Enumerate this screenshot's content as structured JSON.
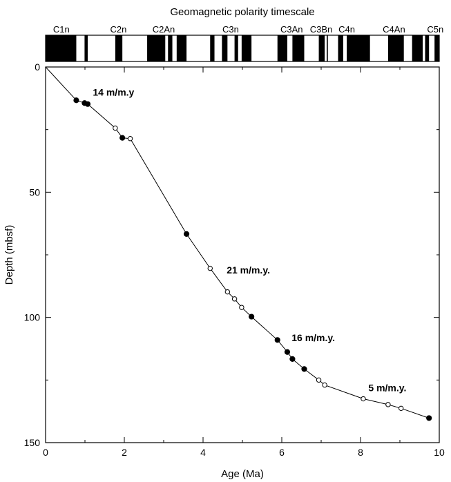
{
  "chart_data": {
    "type": "scatter",
    "title": "Geomagnetic polarity timescale",
    "xlabel": "Age (Ma)",
    "ylabel": "Depth (mbsf)",
    "xlim": [
      0,
      10
    ],
    "ylim": [
      0,
      150
    ],
    "y_inverted": true,
    "xticks": [
      "0",
      "2",
      "4",
      "6",
      "8",
      "10"
    ],
    "yticks": [
      "0",
      "50",
      "100",
      "150"
    ],
    "chrons": [
      {
        "label": "C1n",
        "age": 0.4
      },
      {
        "label": "C2n",
        "age": 1.85
      },
      {
        "label": "C2An",
        "age": 3.0
      },
      {
        "label": "C3n",
        "age": 4.7
      },
      {
        "label": "C3An",
        "age": 6.25
      },
      {
        "label": "C3Bn",
        "age": 7.0
      },
      {
        "label": "C4n",
        "age": 7.65
      },
      {
        "label": "C4An",
        "age": 8.85
      },
      {
        "label": "C5n",
        "age": 9.9
      }
    ],
    "normal_polarity_intervals": [
      [
        0.0,
        0.78
      ],
      [
        0.99,
        1.07
      ],
      [
        1.77,
        1.95
      ],
      [
        2.58,
        3.04
      ],
      [
        3.11,
        3.22
      ],
      [
        3.33,
        3.58
      ],
      [
        4.18,
        4.29
      ],
      [
        4.48,
        4.62
      ],
      [
        4.8,
        4.89
      ],
      [
        4.98,
        5.23
      ],
      [
        5.89,
        6.14
      ],
      [
        6.27,
        6.57
      ],
      [
        6.94,
        7.09
      ],
      [
        7.14,
        7.17
      ],
      [
        7.43,
        7.56
      ],
      [
        7.65,
        8.24
      ],
      [
        8.7,
        9.1
      ],
      [
        9.31,
        9.58
      ],
      [
        9.64,
        9.74
      ],
      [
        9.88,
        10.0
      ]
    ],
    "series": [
      {
        "marker": "filled",
        "points": [
          [
            0.78,
            13.3
          ],
          [
            0.99,
            14.4
          ],
          [
            1.07,
            14.8
          ],
          [
            1.95,
            28.3
          ],
          [
            3.58,
            66.7
          ],
          [
            5.23,
            99.7
          ],
          [
            5.89,
            109.0
          ],
          [
            6.14,
            113.8
          ],
          [
            6.27,
            116.6
          ],
          [
            6.57,
            120.6
          ],
          [
            9.74,
            140.2
          ]
        ]
      },
      {
        "marker": "open",
        "points": [
          [
            1.77,
            24.4
          ],
          [
            2.15,
            28.6
          ],
          [
            4.18,
            80.4
          ],
          [
            4.62,
            89.8
          ],
          [
            4.8,
            92.6
          ],
          [
            4.98,
            96.0
          ],
          [
            6.94,
            125.0
          ],
          [
            7.09,
            127.0
          ],
          [
            8.07,
            132.5
          ],
          [
            8.7,
            134.8
          ],
          [
            9.03,
            136.3
          ]
        ]
      }
    ],
    "line": [
      [
        0,
        0
      ],
      [
        0.78,
        13.3
      ],
      [
        0.99,
        14.4
      ],
      [
        1.07,
        14.8
      ],
      [
        1.77,
        24.4
      ],
      [
        1.95,
        28.3
      ],
      [
        2.15,
        28.6
      ],
      [
        3.58,
        66.7
      ],
      [
        4.18,
        80.4
      ],
      [
        4.62,
        89.8
      ],
      [
        4.8,
        92.6
      ],
      [
        4.98,
        96.0
      ],
      [
        5.23,
        99.7
      ],
      [
        5.89,
        109.0
      ],
      [
        6.14,
        113.8
      ],
      [
        6.27,
        116.6
      ],
      [
        6.57,
        120.6
      ],
      [
        6.94,
        125.0
      ],
      [
        7.09,
        127.0
      ],
      [
        8.07,
        132.5
      ],
      [
        8.7,
        134.8
      ],
      [
        9.03,
        136.3
      ],
      [
        9.74,
        140.2
      ]
    ],
    "annotations": [
      {
        "text": "14 m/m.y",
        "x": 1.2,
        "y": 11.5
      },
      {
        "text": "21 m/m.y.",
        "x": 4.6,
        "y": 82.5
      },
      {
        "text": "16 m/m.y.",
        "x": 6.25,
        "y": 109.5
      },
      {
        "text": "5 m/m.y.",
        "x": 8.2,
        "y": 129.5
      }
    ]
  }
}
